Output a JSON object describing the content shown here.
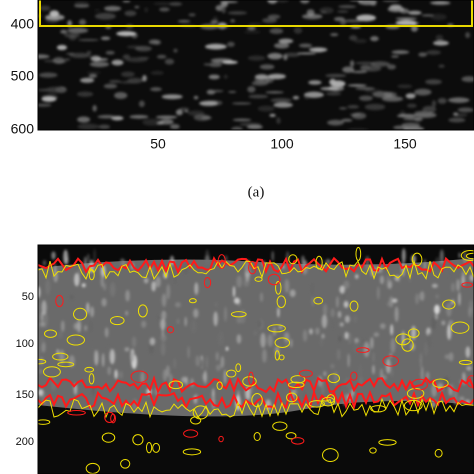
{
  "panels": [
    {
      "yticks": [
        400,
        500,
        600
      ],
      "xticks": [
        50,
        100,
        150
      ],
      "caption": "(a)"
    },
    {
      "yticks": [
        50,
        100,
        150,
        200
      ]
    }
  ]
}
